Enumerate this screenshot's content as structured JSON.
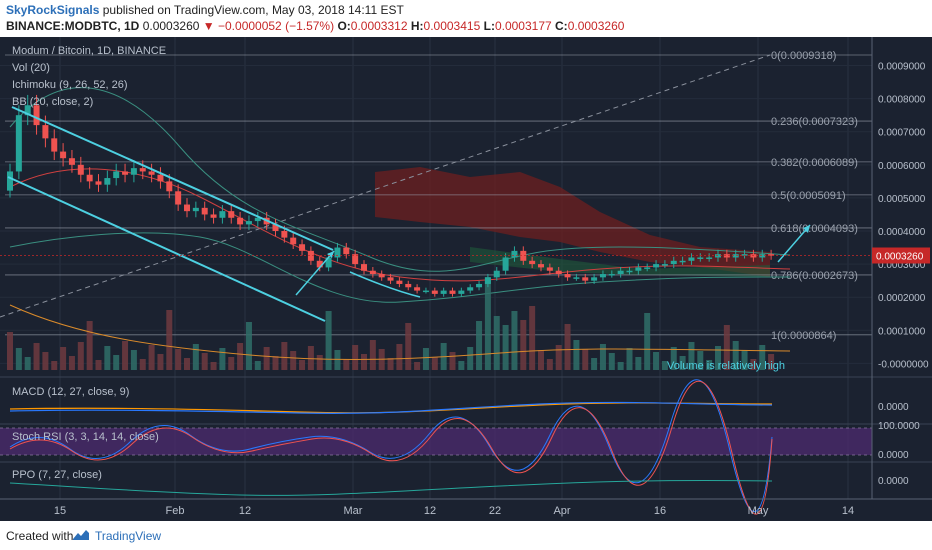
{
  "header": {
    "author": "SkyRockSignals",
    "published_text": "published on TradingView.com, May 03, 2018 14:11 EST",
    "symbol": "BINANCE:MODBTC, 1D",
    "last_price": "0.0003260",
    "change": "−0.0000052 (−1.57%)",
    "ohlc": [
      {
        "label": "O:",
        "value": "0.0003312"
      },
      {
        "label": "H:",
        "value": "0.0003415"
      },
      {
        "label": "L:",
        "value": "0.0003177"
      },
      {
        "label": "C:",
        "value": "0.0003260"
      }
    ]
  },
  "legend": {
    "title": "Modum / Bitcoin, 1D, BINANCE",
    "vol": "Vol (20)",
    "ichimoku": "Ichimoku (9, 26, 52, 26)",
    "bb": "BB (20, close, 2)"
  },
  "colors": {
    "background": "#1b2230",
    "up": "#26a69a",
    "down": "#ef5350",
    "channel": "#4dd0e1",
    "kumo": "#6d1f1f",
    "macd": "#2979ff",
    "signal": "#ff9800",
    "stoch_bg": "#4a2a6b",
    "price_tag": "#c62828"
  },
  "chart_data": {
    "type": "candlestick",
    "price_axis": {
      "ticks": [
        "0.0009000",
        "0.0008000",
        "0.0007000",
        "0.0006000",
        "0.0005000",
        "0.0004000",
        "0.0003000",
        "0.0002000",
        "0.0001000",
        "-0.0000000"
      ],
      "last_price_tag": "0.0003260"
    },
    "x_axis": {
      "ticks": [
        "15",
        "Feb",
        "12",
        "Mar",
        "12",
        "22",
        "Apr",
        "16",
        "May",
        "14"
      ]
    },
    "fibonacci": [
      {
        "label": "0(0.0009318)",
        "value": 0.0009318
      },
      {
        "label": "0.236(0.0007323)",
        "value": 0.0007323
      },
      {
        "label": "0.382(0.0006089)",
        "value": 0.0006089
      },
      {
        "label": "0.5(0.0005091)",
        "value": 0.0005091
      },
      {
        "label": "0.618(0.0004093)",
        "value": 0.0004093
      },
      {
        "label": "0.786(0.0002673)",
        "value": 0.0002673
      },
      {
        "label": "1(0.0000864)",
        "value": 8.64e-05
      }
    ],
    "annotation": "Volume is relatively high",
    "candles_close": [
      0.00058,
      0.00075,
      0.00078,
      0.00072,
      0.00068,
      0.00064,
      0.00062,
      0.0006,
      0.00057,
      0.00055,
      0.00054,
      0.00056,
      0.00058,
      0.00057,
      0.00059,
      0.00058,
      0.00057,
      0.00055,
      0.00052,
      0.00048,
      0.00046,
      0.00047,
      0.00045,
      0.00044,
      0.00046,
      0.00044,
      0.00042,
      0.00043,
      0.00044,
      0.00042,
      0.0004,
      0.00038,
      0.00036,
      0.00034,
      0.00031,
      0.00029,
      0.00032,
      0.00035,
      0.00033,
      0.0003,
      0.00028,
      0.00027,
      0.00026,
      0.00025,
      0.00024,
      0.00023,
      0.00022,
      0.00022,
      0.00021,
      0.00022,
      0.00021,
      0.00022,
      0.00023,
      0.00024,
      0.00026,
      0.00028,
      0.00032,
      0.00034,
      0.00031,
      0.0003,
      0.00029,
      0.00028,
      0.00027,
      0.00026,
      0.00026,
      0.00025,
      0.00026,
      0.00027,
      0.00027,
      0.00028,
      0.00028,
      0.00029,
      0.00029,
      0.0003,
      0.0003,
      0.00031,
      0.00031,
      0.00032,
      0.00032,
      0.00032,
      0.00033,
      0.00032,
      0.00033,
      0.00033,
      0.00032,
      0.00033,
      0.000326
    ],
    "macd": {
      "label": "MACD (12, 27, close, 9)",
      "ticks": [
        "0.0000"
      ]
    },
    "stoch_rsi": {
      "label": "Stoch RSI (3, 3, 14, 14, close)",
      "ticks": [
        "100.0000",
        "0.0000"
      ]
    },
    "ppo": {
      "label": "PPO (7, 27, close)",
      "ticks": [
        "0.0000"
      ]
    }
  },
  "footer": {
    "created_with": "Created with",
    "brand": "TradingView"
  }
}
